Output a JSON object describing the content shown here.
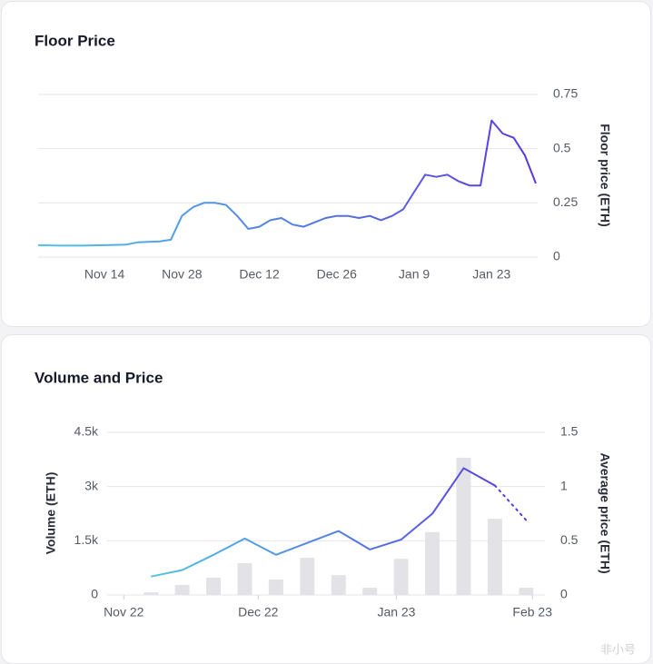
{
  "chart_data": [
    {
      "type": "line",
      "title": "Floor Price",
      "y_label": "Floor price (ETH)",
      "categories": [
        null,
        null,
        null,
        null,
        null,
        null,
        "Nov 14",
        null,
        null,
        null,
        null,
        null,
        null,
        "Nov 28",
        null,
        null,
        null,
        null,
        null,
        null,
        "Dec 12",
        null,
        null,
        null,
        null,
        null,
        null,
        "Dec 26",
        null,
        null,
        null,
        null,
        null,
        null,
        "Jan 9",
        null,
        null,
        null,
        null,
        null,
        null,
        "Jan 23",
        null,
        null,
        null,
        null
      ],
      "series": [
        {
          "name": "Floor price",
          "gradient": [
            "#4fc6e8",
            "#5a36e0"
          ],
          "values": [
            0.055,
            0.054,
            0.053,
            0.053,
            0.053,
            0.054,
            0.055,
            0.056,
            0.058,
            0.068,
            0.07,
            0.072,
            0.08,
            0.19,
            0.23,
            0.25,
            0.25,
            0.24,
            0.19,
            0.13,
            0.14,
            0.17,
            0.18,
            0.15,
            0.14,
            0.16,
            0.18,
            0.19,
            0.19,
            0.18,
            0.19,
            0.17,
            0.19,
            0.22,
            0.3,
            0.38,
            0.37,
            0.38,
            0.35,
            0.33,
            0.33,
            0.63,
            0.57,
            0.55,
            0.47,
            0.34
          ]
        }
      ],
      "ylim": [
        0,
        0.75
      ],
      "yticks": [
        0,
        0.25,
        0.5,
        0.75
      ],
      "grid": true,
      "y_axis_side": "right"
    },
    {
      "type": "bar-line",
      "title": "Volume and Price",
      "y_label": "Volume (ETH)",
      "y2_label": "Average price (ETH)",
      "categories": [
        null,
        null,
        null,
        null,
        null,
        null,
        null,
        null,
        null,
        null,
        null,
        null,
        null
      ],
      "xlim": [
        -1.4,
        12.6
      ],
      "xticks": [
        {
          "value": -0.87,
          "label": "Nov 22"
        },
        {
          "value": 3.43,
          "label": "Dec 22"
        },
        {
          "value": 7.85,
          "label": "Jan 23"
        },
        {
          "value": 12.2,
          "label": "Feb 23"
        }
      ],
      "series": [
        {
          "name": "Volume",
          "kind": "bar",
          "color": "#e3e3e7",
          "values": [
            75,
            280,
            480,
            880,
            430,
            1030,
            550,
            200,
            1000,
            1740,
            3800,
            2110,
            200
          ]
        },
        {
          "name": "Average price",
          "kind": "line",
          "axis": "y2",
          "gradient": [
            "#4fc6e8",
            "#5a36e0"
          ],
          "dotted_after": 11,
          "values": [
            0.17,
            0.23,
            0.37,
            0.52,
            0.37,
            0.48,
            0.59,
            0.42,
            0.51,
            0.75,
            1.17,
            1.01,
            0.69
          ]
        }
      ],
      "ylim": [
        0,
        4500
      ],
      "yticks": [
        0,
        {
          "value": 1500,
          "label": "1.5k"
        },
        {
          "value": 3000,
          "label": "3k"
        },
        {
          "value": 4500,
          "label": "4.5k"
        }
      ],
      "y2lim": [
        0,
        1.5
      ],
      "y2ticks": [
        0,
        0.5,
        1,
        1.5
      ],
      "grid": true
    }
  ],
  "watermark": "非小号"
}
